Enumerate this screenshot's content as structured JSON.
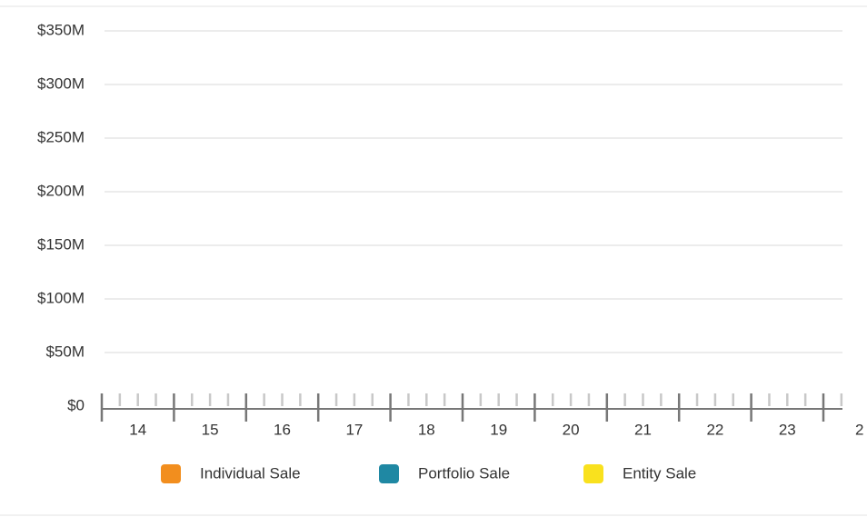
{
  "chart_data": {
    "type": "bar",
    "categories": [
      "14",
      "15",
      "16",
      "17",
      "18",
      "19",
      "20",
      "21",
      "22",
      "23",
      "2"
    ],
    "series": [
      {
        "name": "Individual Sale",
        "color": "#f28e1e",
        "values": [
          0,
          0,
          0,
          0,
          0,
          0,
          0,
          0,
          0,
          0,
          0
        ]
      },
      {
        "name": "Portfolio Sale",
        "color": "#1f88a3",
        "values": [
          0,
          0,
          0,
          0,
          0,
          0,
          0,
          0,
          0,
          0,
          0
        ]
      },
      {
        "name": "Entity Sale",
        "color": "#f9e11e",
        "values": [
          0,
          0,
          0,
          0,
          0,
          0,
          0,
          0,
          0,
          0,
          0
        ]
      }
    ],
    "ylim": [
      0,
      350000000
    ],
    "yticks": [
      {
        "value": 0,
        "label": "$0"
      },
      {
        "value": 50000000,
        "label": "$50M"
      },
      {
        "value": 100000000,
        "label": "$100M"
      },
      {
        "value": 150000000,
        "label": "$150M"
      },
      {
        "value": 200000000,
        "label": "$200M"
      },
      {
        "value": 250000000,
        "label": "$250M"
      },
      {
        "value": 300000000,
        "label": "$300M"
      },
      {
        "value": 350000000,
        "label": "$350M"
      }
    ],
    "grid": true
  }
}
